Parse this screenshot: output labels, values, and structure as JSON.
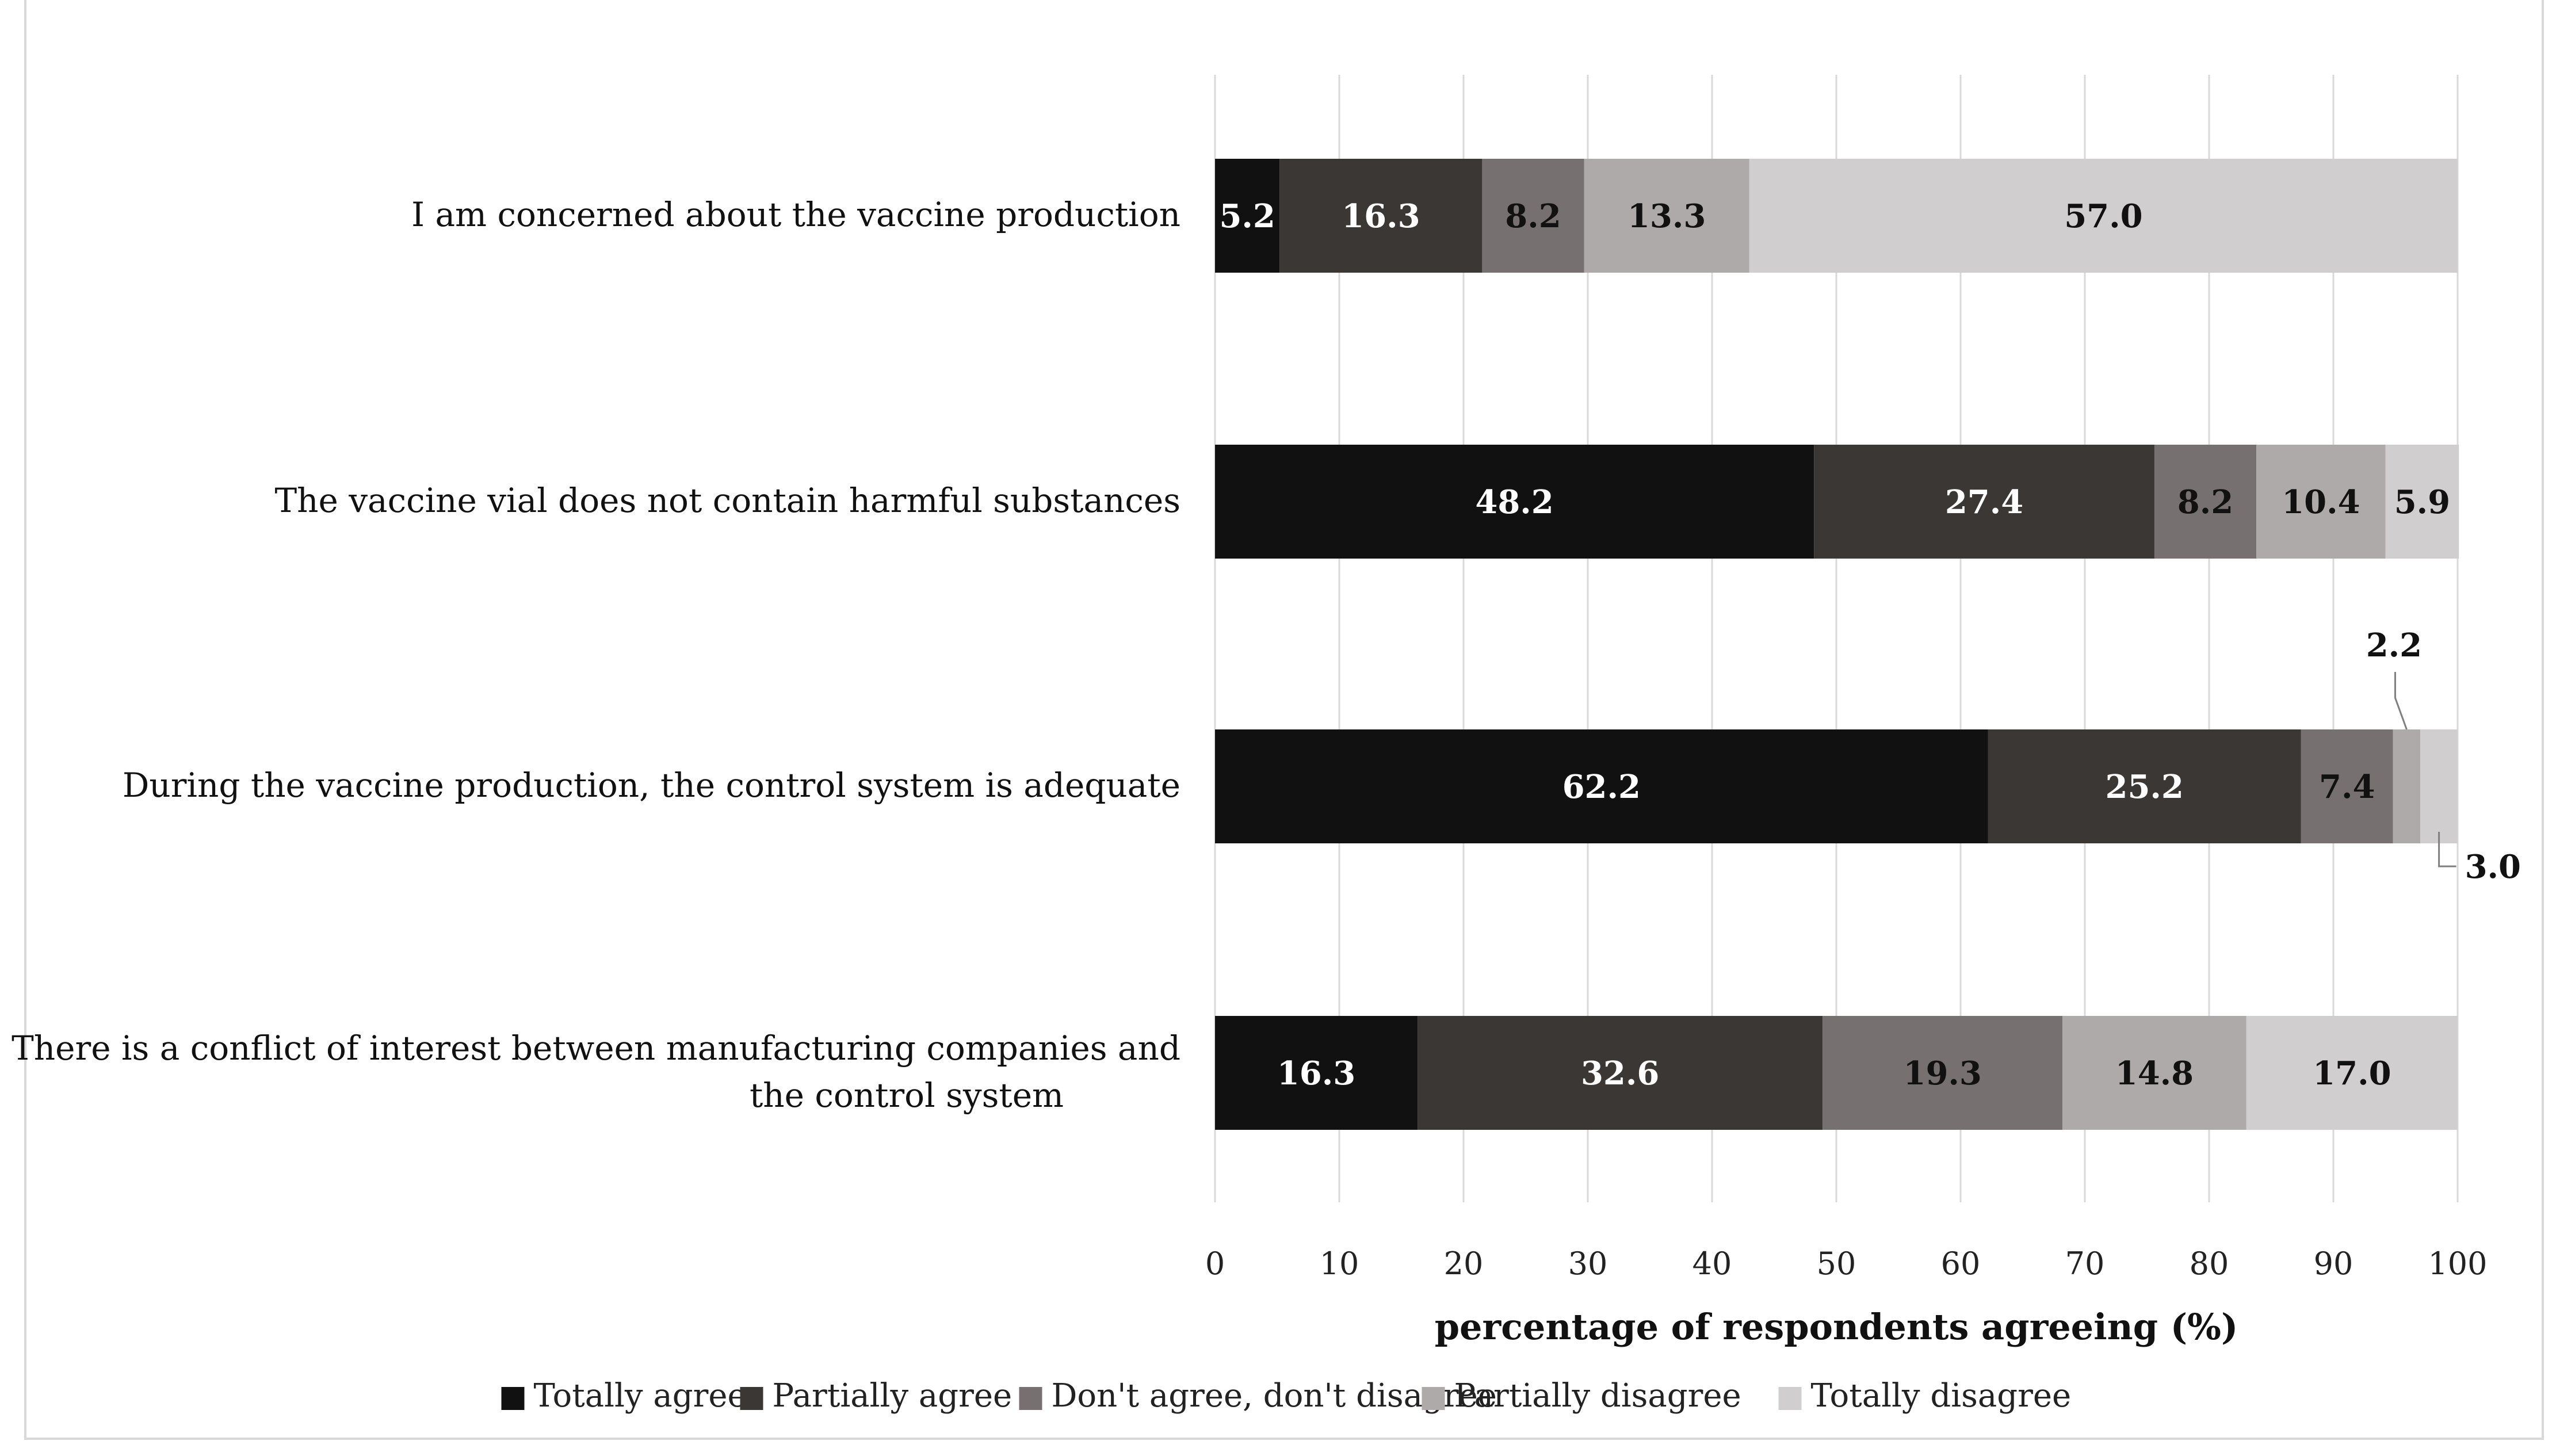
{
  "chart_data": {
    "type": "bar",
    "orientation": "horizontal",
    "stacked": true,
    "categories": [
      "I am concerned about the vaccine production",
      "The vaccine vial does not contain harmful substances",
      "During the vaccine production, the control system is adequate",
      "There is a conflict of interest between manufacturing companies and the control system"
    ],
    "series": [
      {
        "name": "Totally agree",
        "color": "#111111",
        "label_color": "#ffffff",
        "values": [
          5.2,
          48.2,
          62.2,
          16.3
        ]
      },
      {
        "name": "Partially agree",
        "color": "#3b3735",
        "label_color": "#ffffff",
        "values": [
          16.3,
          27.4,
          25.2,
          32.6
        ]
      },
      {
        "name": "Don't agree, don't disagree",
        "color": "#767170",
        "label_color": "#111111",
        "values": [
          8.2,
          8.2,
          7.4,
          19.3
        ]
      },
      {
        "name": "Partially disagree",
        "color": "#aeaaaa",
        "label_color": "#111111",
        "values": [
          13.3,
          10.4,
          2.2,
          14.8
        ]
      },
      {
        "name": "Totally disagree",
        "color": "#d0cece",
        "label_color": "#111111",
        "values": [
          57.0,
          5.9,
          3.0,
          17.0
        ]
      }
    ],
    "xlabel": "percentage of respondents agreeing (%)",
    "xlim": [
      0,
      100
    ],
    "xticks": [
      0,
      10,
      20,
      30,
      40,
      50,
      60,
      70,
      80,
      90,
      100
    ],
    "grid": true,
    "legend_position": "bottom",
    "callouts": [
      {
        "category_index": 2,
        "series_index": 3,
        "text": "2.2",
        "position": "above"
      },
      {
        "category_index": 2,
        "series_index": 4,
        "text": "3.0",
        "position": "right"
      }
    ]
  }
}
